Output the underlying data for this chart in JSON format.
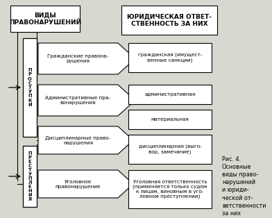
{
  "bg_color": "#d8d8d0",
  "border_color": "#000000",
  "title1": "ВИДЫ\nПРАВОНАРУШЕНИЙ",
  "title2": "ЮРИДИЧЕСКАЯ ОТВЕТ-\nСТВЕННОСТЬ ЗА НИХ",
  "left_label_prostupki": "П\nР\nО\nС\nТ\nУ\nП\nК\nИ",
  "left_label_prestupleniya": "П\nР\nЕ\nС\nТ\nУ\nП\nЛ\nЕ\nН\nИ\nЯ",
  "mid_texts": [
    "Гражданские правона-\nрушения",
    "Административные пра-\nвонарушения",
    "Дисциплинарные право-\nнарушения",
    "Уголовное\nправонарушение"
  ],
  "right_texts": [
    "гражданская (имущест-\nвенные санкции)",
    "административная",
    "материальная",
    "дисциплинарная (выго-\nвор, замечание)",
    "Уголовная ответственность\n(применяется только судом\nк лицам, виновным в уго-\nловном преступлении)"
  ],
  "caption": "Рис. 4.\nОсновные\nвиды право-\nнарушений\nи юриди-\nческой от-\nветственности\nза них",
  "fs_title": 6.5,
  "fs_main": 5.2,
  "fs_caption": 5.8
}
